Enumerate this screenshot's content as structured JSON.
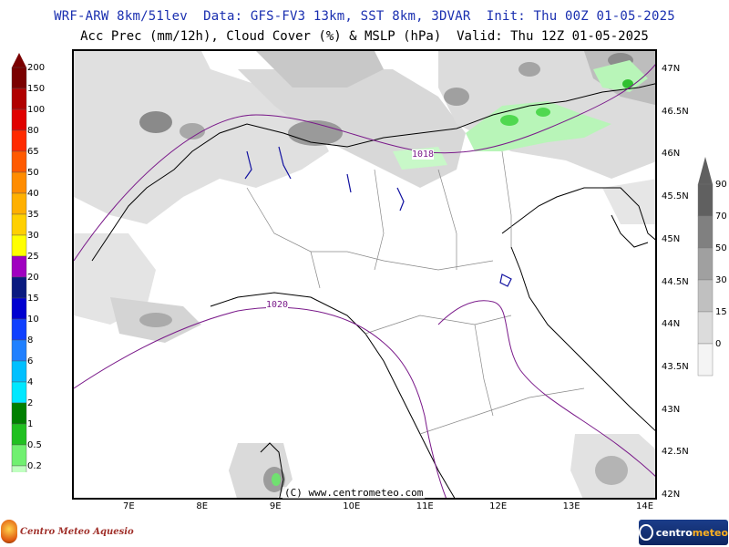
{
  "header": {
    "line1": "WRF-ARW 8km/51lev  Data: GFS-FV3 13km, SST 8km, 3DVAR  Init: Thu 00Z 01-05-2025",
    "line2": "Acc Prec (mm/12h), Cloud Cover (%) & MSLP (hPa)  Valid: Thu 12Z 01-05-2025"
  },
  "precip_legend": {
    "labels": [
      "200",
      "150",
      "100",
      "80",
      "65",
      "50",
      "40",
      "35",
      "30",
      "25",
      "20",
      "15",
      "10",
      "8",
      "6",
      "4",
      "2",
      "1",
      "0.5",
      "0.2"
    ],
    "colors": [
      "#7a0000",
      "#b00000",
      "#e00000",
      "#ff2a00",
      "#ff5a00",
      "#ff8c00",
      "#ffb000",
      "#ffd000",
      "#ffff00",
      "#a000c0",
      "#0a1a80",
      "#0000d0",
      "#1040ff",
      "#2080ff",
      "#00c0ff",
      "#00e8ff",
      "#008000",
      "#20c020",
      "#70f070",
      "#c0ffc0"
    ]
  },
  "cloud_legend": {
    "labels": [
      "90",
      "70",
      "50",
      "30",
      "15",
      "0"
    ],
    "colors": [
      "#606060",
      "#808080",
      "#a0a0a0",
      "#c0c0c0",
      "#dcdcdc",
      "#f4f4f4"
    ]
  },
  "lat_labels": [
    "47N",
    "46.5N",
    "46N",
    "45.5N",
    "45N",
    "44.5N",
    "44N",
    "43.5N",
    "43N",
    "42.5N",
    "42N"
  ],
  "lon_labels": [
    "7E",
    "8E",
    "9E",
    "10E",
    "11E",
    "12E",
    "13E",
    "14E"
  ],
  "isobars": [
    "1018",
    "1020"
  ],
  "copyright": "(C) www.centrometeo.com",
  "logos": {
    "left_text": "Centro Meteo Aquesio",
    "right_text_a": "centro",
    "right_text_b": "meteo"
  }
}
